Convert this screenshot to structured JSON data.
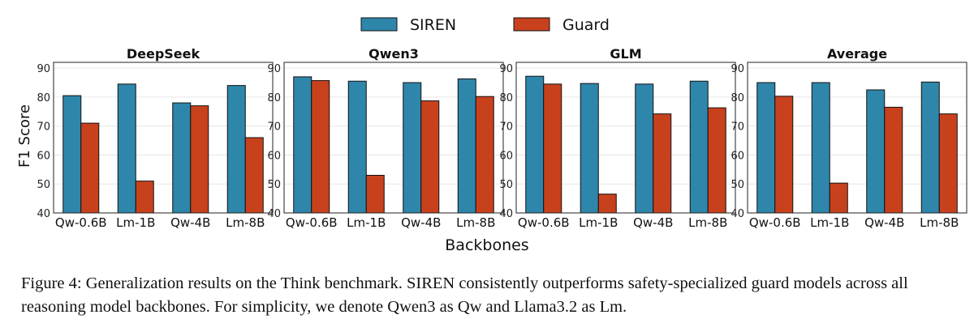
{
  "legend": {
    "items": [
      {
        "label": "SIREN",
        "color": "#2e86ab"
      },
      {
        "label": "Guard",
        "color": "#c8411d"
      }
    ]
  },
  "xlabel": "Backbones",
  "ylabel": "F1 Score",
  "colors": {
    "siren": "#2e86ab",
    "guard": "#c8411d",
    "grid": "#e6e6e6",
    "bar_edge": "#111111"
  },
  "chart_data": [
    {
      "type": "bar",
      "title": "DeepSeek",
      "categories": [
        "Qw-0.6B",
        "Lm-1B",
        "Qw-4B",
        "Lm-8B"
      ],
      "series": [
        {
          "name": "SIREN",
          "values": [
            80.5,
            84.5,
            78,
            84
          ]
        },
        {
          "name": "Guard",
          "values": [
            71,
            51,
            77,
            66
          ]
        }
      ],
      "ylim": [
        40,
        92
      ],
      "yticks": [
        "40",
        "50",
        "60",
        "70",
        "80",
        "90"
      ],
      "ylabel": "F1 Score",
      "grid": true
    },
    {
      "type": "bar",
      "title": "Qwen3",
      "categories": [
        "Qw-0.6B",
        "Lm-1B",
        "Qw-4B",
        "Lm-8B"
      ],
      "series": [
        {
          "name": "SIREN",
          "values": [
            87,
            85.5,
            85,
            86.3
          ]
        },
        {
          "name": "Guard",
          "values": [
            85.7,
            53,
            78.7,
            80.2
          ]
        }
      ],
      "ylim": [
        40,
        92
      ],
      "yticks": [
        "40",
        "50",
        "60",
        "70",
        "80",
        "90"
      ],
      "grid": true
    },
    {
      "type": "bar",
      "title": "GLM",
      "categories": [
        "Qw-0.6B",
        "Lm-1B",
        "Qw-4B",
        "Lm-8B"
      ],
      "series": [
        {
          "name": "SIREN",
          "values": [
            87.2,
            84.7,
            84.5,
            85.5
          ]
        },
        {
          "name": "Guard",
          "values": [
            84.5,
            46.5,
            74.2,
            76.3
          ]
        }
      ],
      "ylim": [
        40,
        92
      ],
      "yticks": [
        "40",
        "50",
        "60",
        "70",
        "80",
        "90"
      ],
      "grid": true
    },
    {
      "type": "bar",
      "title": "Average",
      "categories": [
        "Qw-0.6B",
        "Lm-1B",
        "Qw-4B",
        "Lm-8B"
      ],
      "series": [
        {
          "name": "SIREN",
          "values": [
            85,
            85,
            82.5,
            85.2
          ]
        },
        {
          "name": "Guard",
          "values": [
            80.3,
            50.3,
            76.5,
            74.2
          ]
        }
      ],
      "ylim": [
        40,
        92
      ],
      "yticks": [
        "40",
        "50",
        "60",
        "70",
        "80",
        "90"
      ],
      "grid": true
    }
  ],
  "caption": "Figure 4: Generalization results on the Think benchmark. SIREN consistently outperforms safety-specialized guard models across all reasoning model backbones. For simplicity, we denote Qwen3 as Qw and Llama3.2 as Lm."
}
